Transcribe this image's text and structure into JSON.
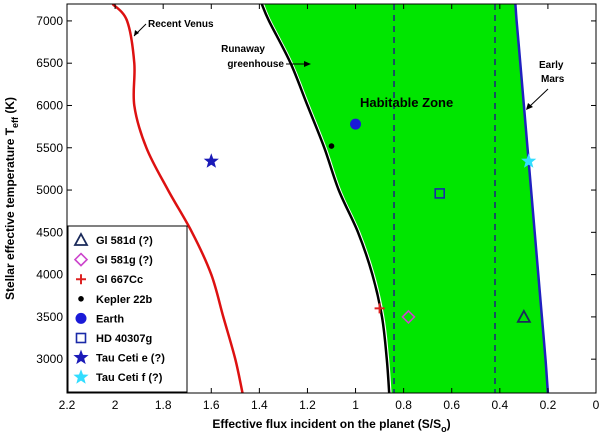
{
  "chart_data": {
    "type": "line",
    "xlabel_main": "Effective flux incident on the planet (S/S",
    "xlabel_sub": "o",
    "xlabel_end": ")",
    "ylabel_main": "Stellar effective temperature T",
    "ylabel_sub": "eff",
    "ylabel_end": " (K)",
    "xlim": [
      2.2,
      0
    ],
    "ylim": [
      2600,
      7200
    ],
    "x_reversed": true,
    "x_ticks": [
      2.2,
      2,
      1.8,
      1.6,
      1.4,
      1.2,
      1,
      0.8,
      0.6,
      0.4,
      0.2,
      0
    ],
    "x_tick_labels": [
      "2.2",
      "2",
      "1.8",
      "1.6",
      "1.4",
      "1.2",
      "1",
      "0.8",
      "0.6",
      "0.4",
      "0.2",
      "0"
    ],
    "y_ticks": [
      3000,
      3500,
      4000,
      4500,
      5000,
      5500,
      6000,
      6500,
      7000
    ],
    "y_tick_labels": [
      "3000",
      "3500",
      "4000",
      "4500",
      "5000",
      "5500",
      "6000",
      "6500",
      "7000"
    ],
    "grid": false,
    "habitable_zone": {
      "label": "Habitable Zone",
      "color": "#00e600",
      "inner_edge": [
        [
          0.85,
          2600
        ],
        [
          0.86,
          3000
        ],
        [
          0.88,
          3500
        ],
        [
          0.92,
          4000
        ],
        [
          0.98,
          4500
        ],
        [
          1.06,
          5000
        ],
        [
          1.12,
          5500
        ],
        [
          1.19,
          6000
        ],
        [
          1.26,
          6500
        ],
        [
          1.35,
          7000
        ],
        [
          1.38,
          7200
        ]
      ],
      "outer_edge": [
        [
          0.2,
          2600
        ],
        [
          0.21,
          3000
        ],
        [
          0.225,
          3500
        ],
        [
          0.24,
          4000
        ],
        [
          0.255,
          4500
        ],
        [
          0.27,
          5000
        ],
        [
          0.285,
          5500
        ],
        [
          0.3,
          6000
        ],
        [
          0.315,
          6500
        ],
        [
          0.33,
          7000
        ],
        [
          0.335,
          7200
        ]
      ]
    },
    "series": [
      {
        "name": "Recent Venus",
        "color": "#dd1111",
        "points": [
          [
            1.47,
            2600
          ],
          [
            1.5,
            3000
          ],
          [
            1.55,
            3500
          ],
          [
            1.6,
            4000
          ],
          [
            1.68,
            4500
          ],
          [
            1.78,
            5000
          ],
          [
            1.87,
            5500
          ],
          [
            1.92,
            6000
          ],
          [
            1.92,
            6500
          ],
          [
            1.95,
            7000
          ],
          [
            2.01,
            7200
          ]
        ]
      },
      {
        "name": "Runaway greenhouse",
        "color": "#000000",
        "points": [
          [
            0.86,
            2600
          ],
          [
            0.87,
            3000
          ],
          [
            0.89,
            3500
          ],
          [
            0.93,
            4000
          ],
          [
            0.99,
            4500
          ],
          [
            1.07,
            5000
          ],
          [
            1.13,
            5500
          ],
          [
            1.2,
            6000
          ],
          [
            1.27,
            6500
          ],
          [
            1.36,
            7000
          ],
          [
            1.39,
            7200
          ]
        ]
      },
      {
        "name": "Early Mars",
        "color": "#2020c0",
        "points": [
          [
            0.2,
            2600
          ],
          [
            0.21,
            3000
          ],
          [
            0.225,
            3500
          ],
          [
            0.24,
            4000
          ],
          [
            0.255,
            4500
          ],
          [
            0.27,
            5000
          ],
          [
            0.285,
            5500
          ],
          [
            0.3,
            6000
          ],
          [
            0.315,
            6500
          ],
          [
            0.33,
            7000
          ],
          [
            0.335,
            7200
          ]
        ]
      }
    ],
    "vertical_lines": [
      {
        "x": 0.84,
        "color": "#202080",
        "style": "dashed"
      },
      {
        "x": 0.42,
        "color": "#202080",
        "style": "dashed"
      }
    ],
    "planets": [
      {
        "name": "Gl 581d (?)",
        "x": 0.3,
        "y": 3500,
        "marker": "triangle",
        "color": "#1a2a5a"
      },
      {
        "name": "Gl 581g (?)",
        "x": 0.78,
        "y": 3500,
        "marker": "diamond",
        "color": "#cc44cc"
      },
      {
        "name": "Gl 667Cc",
        "x": 0.9,
        "y": 3600,
        "marker": "plus",
        "color": "#dd2222"
      },
      {
        "name": "Kepler 22b",
        "x": 1.1,
        "y": 5520,
        "marker": "dot",
        "color": "#000000"
      },
      {
        "name": "Earth",
        "x": 1.0,
        "y": 5780,
        "marker": "circle",
        "color": "#1a1ad8"
      },
      {
        "name": "HD 40307g",
        "x": 0.65,
        "y": 4960,
        "marker": "square",
        "color": "#1a2aa8"
      },
      {
        "name": "Tau Ceti e (?)",
        "x": 1.6,
        "y": 5340,
        "marker": "star",
        "color": "#1a1ab8"
      },
      {
        "name": "Tau Ceti f (?)",
        "x": 0.28,
        "y": 5340,
        "marker": "star",
        "color": "#33ddff"
      }
    ],
    "annotations": {
      "recent_venus": "Recent Venus",
      "runaway_1": "Runaway",
      "runaway_2": "greenhouse",
      "early_1": "Early",
      "early_2": "Mars"
    },
    "legend_position": "bottom-left"
  }
}
